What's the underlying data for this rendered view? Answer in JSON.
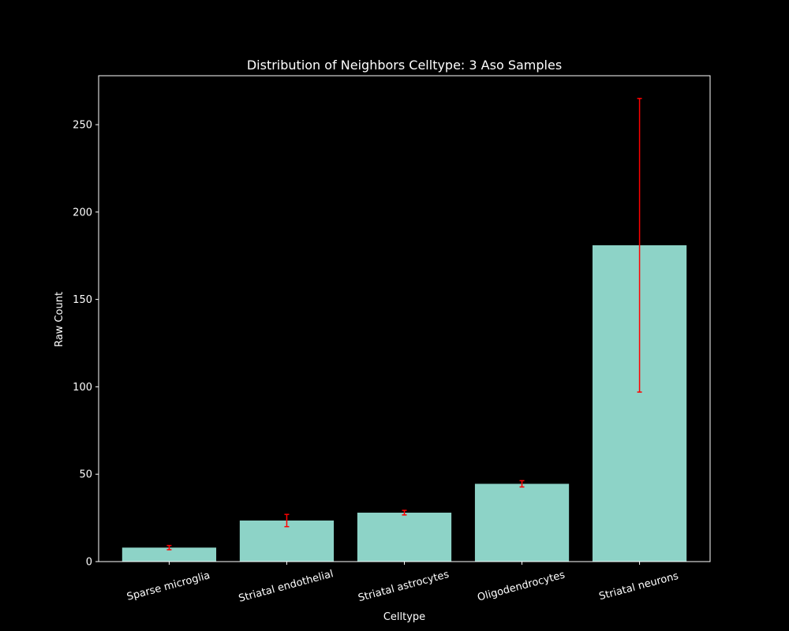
{
  "chart_data": {
    "type": "bar",
    "title": "Distribution of Neighbors Celltype: 3 Aso Samples",
    "xlabel": "Celltype",
    "ylabel": "Raw Count",
    "categories": [
      "Sparse microglia",
      "Striatal endothelial",
      "Striatal astrocytes",
      "Oligodendrocytes",
      "Striatal neurons"
    ],
    "values": [
      8,
      23.5,
      28,
      44.5,
      181
    ],
    "error": [
      1.2,
      3.5,
      1.3,
      1.8,
      84
    ],
    "ylim": [
      0,
      278
    ],
    "yticks": [
      0,
      50,
      100,
      150,
      200,
      250
    ],
    "grid": false,
    "bar_color": "#8dd3c7",
    "error_color": "#ff0000",
    "background": "#000000",
    "foreground": "#ffffff"
  }
}
